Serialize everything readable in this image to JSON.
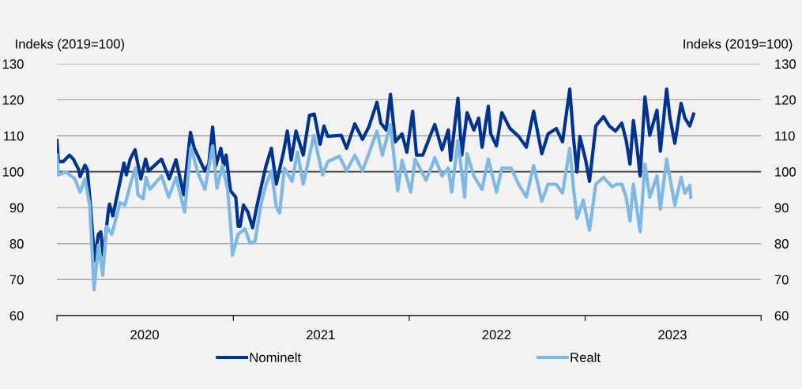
{
  "chart_data": {
    "type": "line",
    "ylabel": "Indeks (2019=100)",
    "y2label": "Indeks (2019=100)",
    "xlim": [
      "2020-01-01",
      "2024-01-01"
    ],
    "xticks": [
      {
        "value": "2020-01-01",
        "label": null
      },
      {
        "value": "2020-07-01",
        "label": "2020"
      },
      {
        "value": "2021-01-01",
        "label": null
      },
      {
        "value": "2021-07-01",
        "label": "2021"
      },
      {
        "value": "2022-01-01",
        "label": null
      },
      {
        "value": "2022-07-01",
        "label": "2022"
      },
      {
        "value": "2023-01-01",
        "label": null
      },
      {
        "value": "2023-07-01",
        "label": "2023"
      },
      {
        "value": "2024-01-01",
        "label": null
      }
    ],
    "ylim": [
      60,
      130
    ],
    "yticks": [
      60,
      70,
      80,
      90,
      100,
      110,
      120,
      130
    ],
    "y2lim": [
      60,
      130
    ],
    "y2ticks": [
      60,
      70,
      80,
      90,
      100,
      110,
      120,
      130
    ],
    "grid": "y",
    "legend": "bottom",
    "marker": "none",
    "line_style": "solid",
    "ref_lines": [
      {
        "axis": "y",
        "value": 100,
        "color": "#404040"
      }
    ],
    "series": [
      {
        "name": "Nominelt",
        "color": "#00338d",
        "x": [
          "2020-01-01",
          "2020-01-04",
          "2020-01-14",
          "2020-01-27",
          "2020-02-04",
          "2020-02-15",
          "2020-02-18",
          "2020-02-28",
          "2020-03-04",
          "2020-03-11",
          "2020-03-19",
          "2020-03-27",
          "2020-04-01",
          "2020-04-06",
          "2020-04-08",
          "2020-04-16",
          "2020-04-19",
          "2020-04-26",
          "2020-05-11",
          "2020-05-19",
          "2020-05-24",
          "2020-06-01",
          "2020-06-11",
          "2020-06-23",
          "2020-07-03",
          "2020-07-09",
          "2020-08-05",
          "2020-08-21",
          "2020-09-04",
          "2020-09-20",
          "2020-10-04",
          "2020-10-12",
          "2020-11-03",
          "2020-11-11",
          "2020-11-19",
          "2020-11-26",
          "2020-12-06",
          "2020-12-12",
          "2020-12-17",
          "2020-12-26",
          "2021-01-06",
          "2021-01-11",
          "2021-01-15",
          "2021-01-22",
          "2021-01-31",
          "2021-02-10",
          "2021-02-18",
          "2021-03-01",
          "2021-03-10",
          "2021-03-21",
          "2021-03-31",
          "2021-04-15",
          "2021-04-23",
          "2021-05-01",
          "2021-05-11",
          "2021-05-26",
          "2021-06-08",
          "2021-06-18",
          "2021-06-30",
          "2021-07-08",
          "2021-07-16",
          "2021-08-13",
          "2021-08-24",
          "2021-09-10",
          "2021-09-26",
          "2021-10-09",
          "2021-10-26",
          "2021-11-03",
          "2021-11-14",
          "2021-11-23",
          "2021-12-03",
          "2021-12-17",
          "2021-12-27",
          "2022-01-08",
          "2022-01-16",
          "2022-01-29",
          "2022-02-15",
          "2022-02-23",
          "2022-03-10",
          "2022-03-23",
          "2022-03-28",
          "2022-04-12",
          "2022-04-20",
          "2022-05-01",
          "2022-05-15",
          "2022-05-25",
          "2022-06-01",
          "2022-06-14",
          "2022-06-19",
          "2022-07-01",
          "2022-07-12",
          "2022-07-29",
          "2022-08-16",
          "2022-09-01",
          "2022-09-16",
          "2022-10-03",
          "2022-10-16",
          "2022-11-02",
          "2022-11-15",
          "2022-11-30",
          "2022-12-08",
          "2022-12-15",
          "2022-12-21",
          "2023-01-02",
          "2023-01-10",
          "2023-01-23",
          "2023-02-08",
          "2023-02-20",
          "2023-03-05",
          "2023-03-18",
          "2023-03-27",
          "2023-04-04",
          "2023-04-11",
          "2023-04-19",
          "2023-04-25",
          "2023-05-05",
          "2023-05-15",
          "2023-05-30",
          "2023-06-06",
          "2023-06-19",
          "2023-06-26",
          "2023-07-06",
          "2023-07-19",
          "2023-07-27",
          "2023-08-06",
          "2023-08-14"
        ],
        "values": [
          108.7,
          102.8,
          102.8,
          104.6,
          103.5,
          100.6,
          98.6,
          101.8,
          100.6,
          89.9,
          75.2,
          82.6,
          83.3,
          76.7,
          78,
          88.5,
          91,
          87.7,
          97.3,
          102.4,
          99.1,
          103.5,
          106.1,
          98,
          103.5,
          100.2,
          103.5,
          98,
          103.3,
          93.6,
          110.9,
          106.5,
          100.2,
          102.1,
          112.4,
          101.7,
          106.5,
          101.7,
          104.6,
          94.7,
          92.9,
          84.8,
          84.8,
          90.7,
          88.8,
          84.4,
          89.9,
          96.5,
          101.7,
          106.5,
          96.5,
          105.4,
          111.3,
          103.2,
          111.3,
          104.6,
          115.7,
          116,
          107.6,
          112.7,
          109.8,
          110.1,
          106.5,
          113.3,
          109,
          112.4,
          119.3,
          113.5,
          111.6,
          121.5,
          108.3,
          110.5,
          105.4,
          116.8,
          104.6,
          104.6,
          110.5,
          113.1,
          106.1,
          111.6,
          103.2,
          120.4,
          104.6,
          116.4,
          111.6,
          114.9,
          106.8,
          118.2,
          110.5,
          107.2,
          116.4,
          112,
          109.8,
          106.8,
          116.8,
          105,
          110.5,
          112,
          108.3,
          123,
          109,
          99.9,
          109.8,
          103.2,
          97.3,
          112.7,
          115.3,
          112.7,
          111.3,
          113.5,
          108.7,
          102.1,
          114.2,
          106.1,
          98.8,
          120.8,
          110.1,
          117.1,
          105.7,
          123,
          114.9,
          107.9,
          119,
          114.9,
          112.7,
          116
        ]
      },
      {
        "name": "Realt",
        "color": "#7fb8e4",
        "x": [
          "2020-01-01",
          "2020-01-04",
          "2020-01-20",
          "2020-02-07",
          "2020-02-18",
          "2020-02-28",
          "2020-03-09",
          "2020-03-18",
          "2020-03-27",
          "2020-04-05",
          "2020-04-13",
          "2020-04-24",
          "2020-05-11",
          "2020-05-21",
          "2020-06-03",
          "2020-06-12",
          "2020-06-17",
          "2020-06-28",
          "2020-07-04",
          "2020-07-12",
          "2020-08-05",
          "2020-08-20",
          "2020-09-04",
          "2020-09-22",
          "2020-10-05",
          "2020-10-20",
          "2020-11-03",
          "2020-11-19",
          "2020-11-28",
          "2020-12-09",
          "2020-12-20",
          "2020-12-27",
          "2020-12-30",
          "2021-01-11",
          "2021-01-25",
          "2021-02-05",
          "2021-02-15",
          "2021-02-28",
          "2021-03-10",
          "2021-03-21",
          "2021-03-31",
          "2021-04-07",
          "2021-04-17",
          "2021-05-03",
          "2021-05-14",
          "2021-05-26",
          "2021-06-17",
          "2021-07-05",
          "2021-07-16",
          "2021-08-09",
          "2021-08-24",
          "2021-09-10",
          "2021-09-26",
          "2021-10-26",
          "2021-11-06",
          "2021-11-23",
          "2021-12-08",
          "2021-12-17",
          "2022-01-04",
          "2022-01-13",
          "2022-02-05",
          "2022-02-15",
          "2022-02-23",
          "2022-03-10",
          "2022-03-23",
          "2022-03-30",
          "2022-04-12",
          "2022-04-26",
          "2022-05-01",
          "2022-05-15",
          "2022-06-01",
          "2022-06-14",
          "2022-07-01",
          "2022-07-12",
          "2022-07-31",
          "2022-08-16",
          "2022-09-01",
          "2022-09-16",
          "2022-10-03",
          "2022-10-16",
          "2022-11-02",
          "2022-11-15",
          "2022-11-30",
          "2022-12-08",
          "2022-12-15",
          "2022-12-28",
          "2023-01-10",
          "2023-01-23",
          "2023-02-08",
          "2023-02-26",
          "2023-03-08",
          "2023-03-18",
          "2023-03-27",
          "2023-04-04",
          "2023-04-11",
          "2023-04-25",
          "2023-05-05",
          "2023-05-15",
          "2023-05-30",
          "2023-06-06",
          "2023-06-19",
          "2023-07-06",
          "2023-07-19",
          "2023-07-27",
          "2023-08-06",
          "2023-08-08"
        ],
        "values": [
          104.6,
          99.1,
          99.9,
          98,
          94.3,
          98,
          90.7,
          67.1,
          79.6,
          71.2,
          84.8,
          82.6,
          91.4,
          90.7,
          97.3,
          101,
          93.6,
          92.5,
          98.4,
          95.1,
          98.8,
          92.9,
          98.4,
          88.8,
          106.8,
          99.5,
          95.1,
          107.2,
          95.4,
          101.7,
          95.1,
          84.1,
          76.7,
          82.6,
          84.1,
          80,
          80.7,
          91.4,
          96.5,
          100.2,
          90.3,
          88.5,
          101,
          97.3,
          105.4,
          96.5,
          110.1,
          99.1,
          102.8,
          104.3,
          100.2,
          104.6,
          100.2,
          111.3,
          104.6,
          113.1,
          94.7,
          103.2,
          94.3,
          103.5,
          97.6,
          101,
          103.9,
          98.8,
          101,
          94.3,
          108.7,
          92.9,
          105,
          98.8,
          95.1,
          103.5,
          94.3,
          101,
          101,
          96.5,
          92.9,
          101.7,
          91.8,
          96.5,
          96.5,
          94,
          106.5,
          95.1,
          87,
          92.1,
          83.7,
          96.5,
          98.4,
          95.8,
          96.5,
          96.5,
          92.9,
          86.3,
          96.5,
          83.3,
          102.1,
          92.9,
          98.8,
          89.6,
          103.5,
          90.7,
          98.4,
          94,
          96.2,
          92.9
        ]
      }
    ]
  }
}
